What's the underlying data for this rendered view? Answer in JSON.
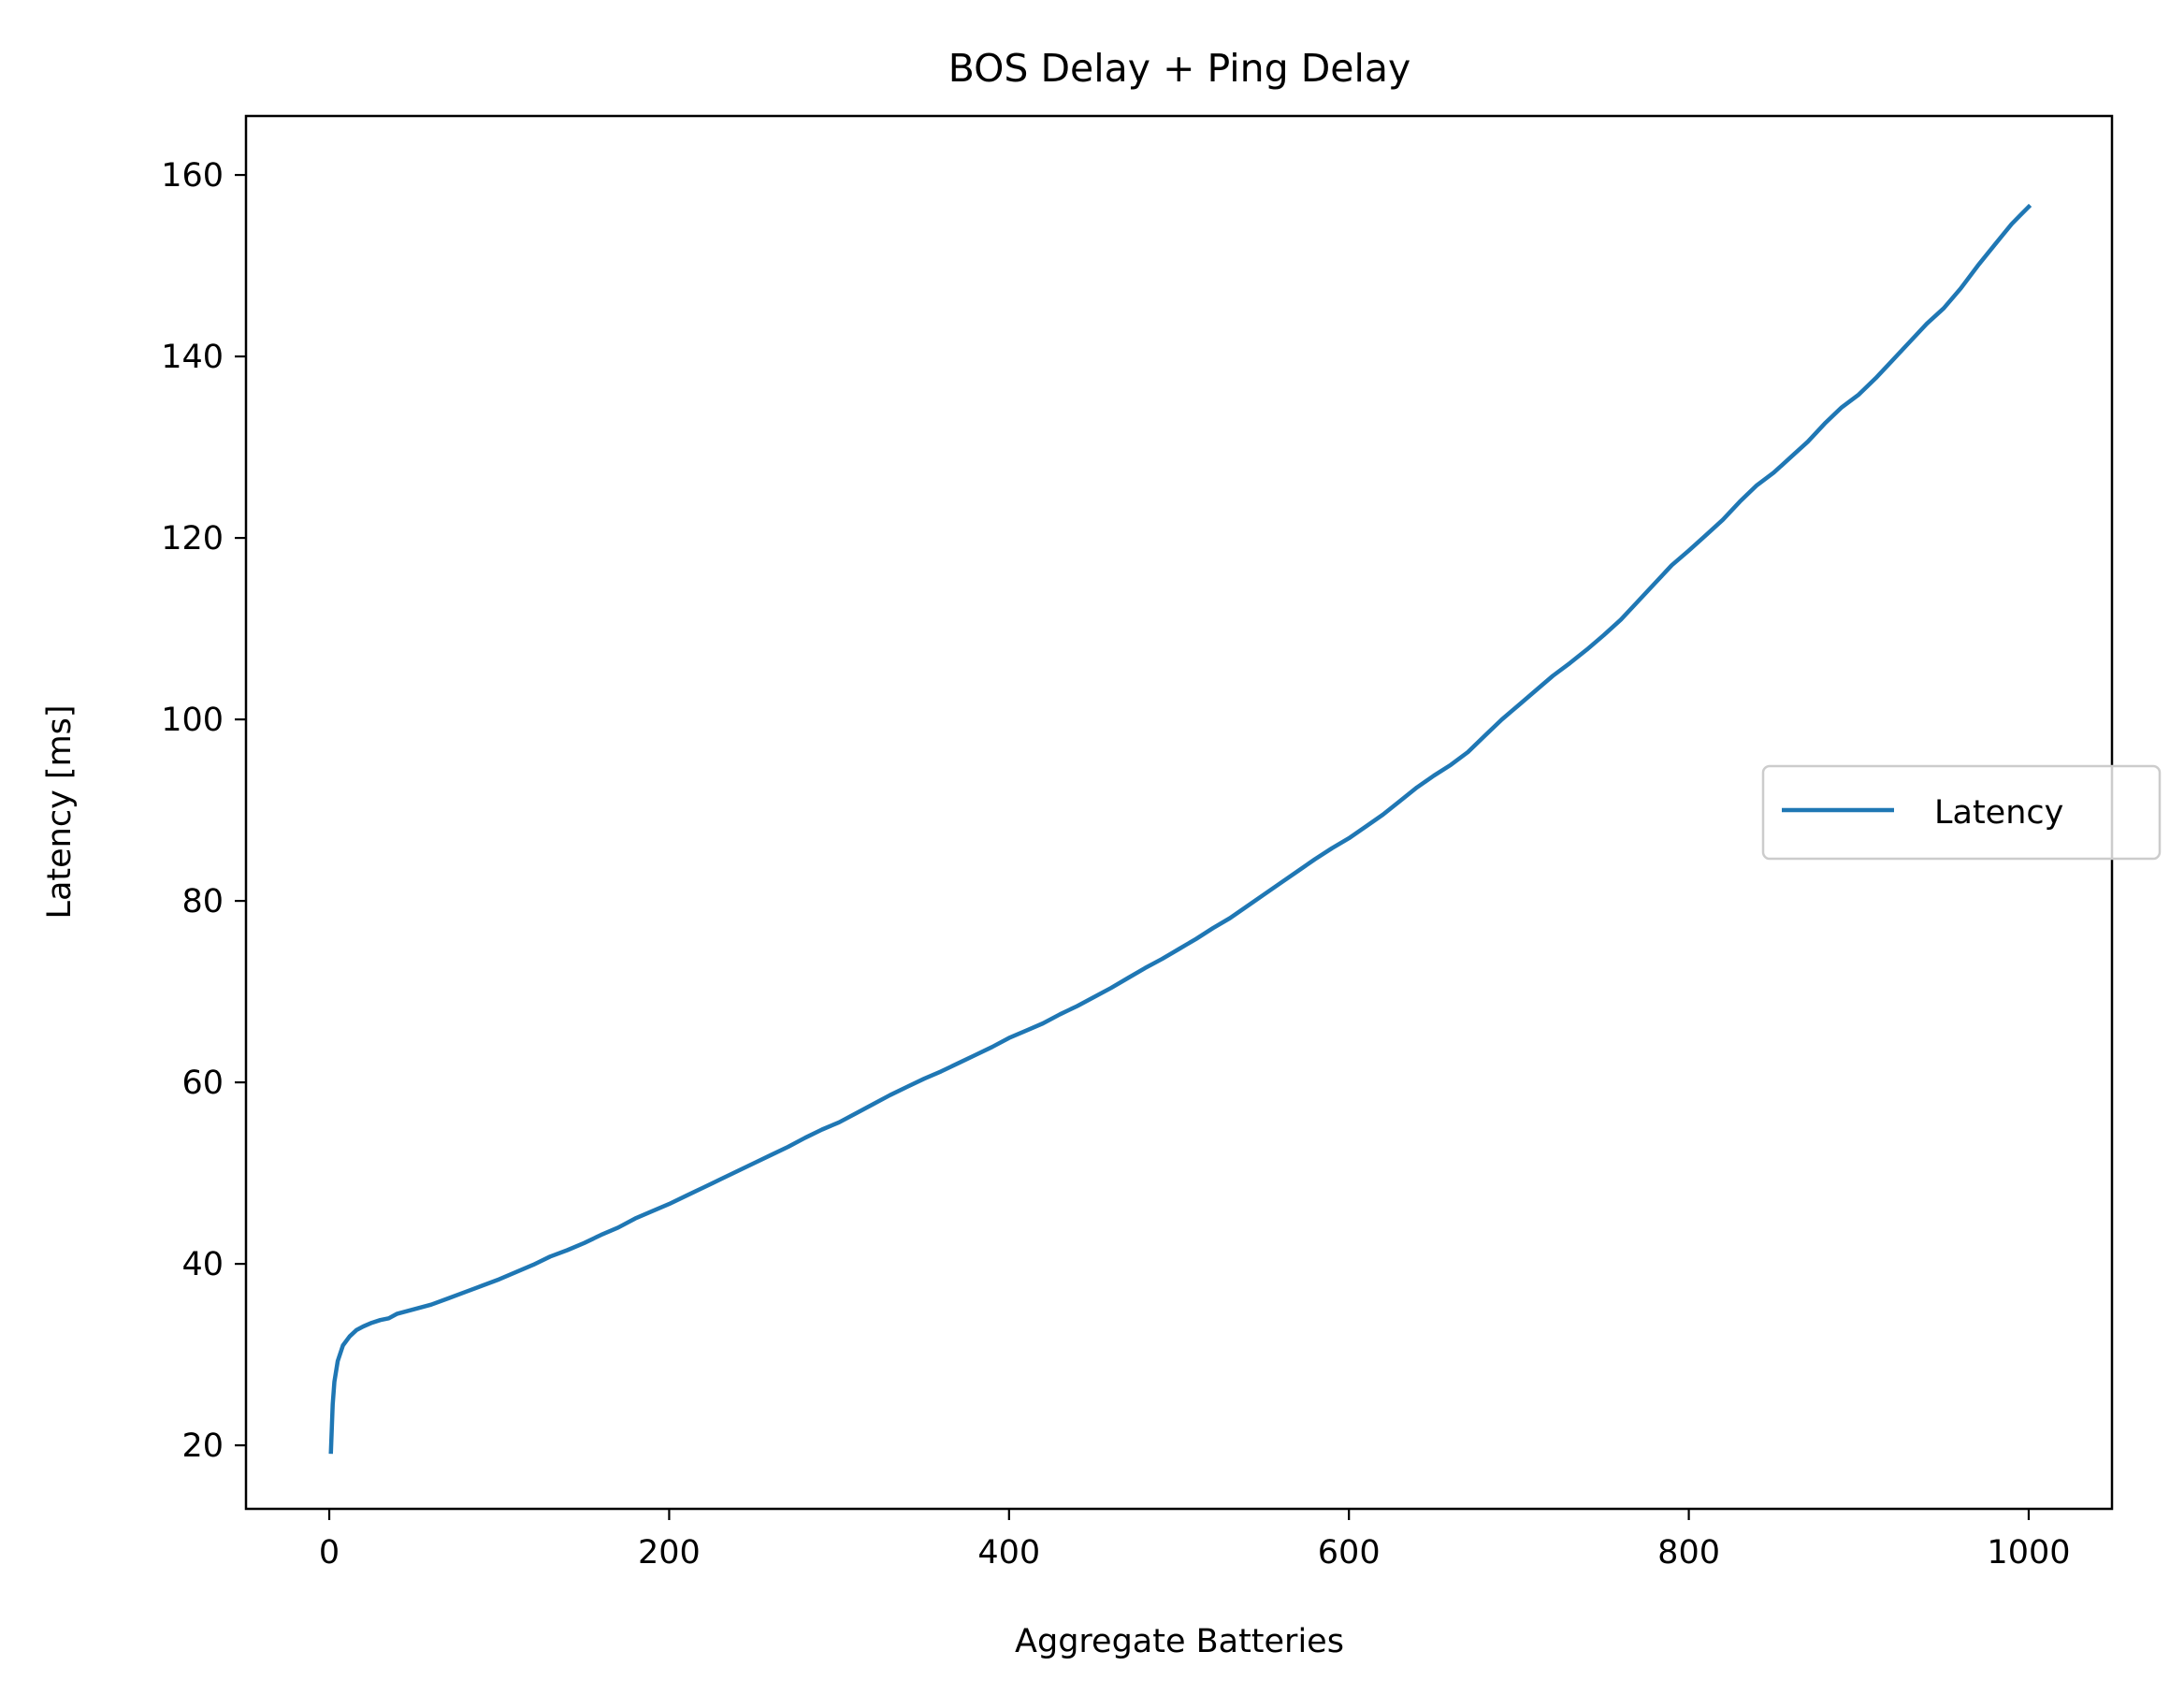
{
  "chart_data": {
    "type": "line",
    "title": "BOS Delay + Ping Delay",
    "xlabel": "Aggregate Batteries",
    "ylabel": "Latency [ms]",
    "xlim": [
      -49,
      1049
    ],
    "ylim": [
      13,
      166.5
    ],
    "xticks": [
      0,
      200,
      400,
      600,
      800,
      1000
    ],
    "yticks": [
      20,
      40,
      60,
      80,
      100,
      120,
      140,
      160
    ],
    "grid": false,
    "legend": "right (outside)",
    "series": [
      {
        "name": "Latency",
        "color": "#1f77b4",
        "points": [
          [
            1,
            19.3
          ],
          [
            2,
            24.5
          ],
          [
            3,
            27.0
          ],
          [
            5,
            29.3
          ],
          [
            8,
            31.0
          ],
          [
            12,
            32.0
          ],
          [
            16,
            32.7
          ],
          [
            20,
            33.1
          ],
          [
            25,
            33.5
          ],
          [
            30,
            33.8
          ],
          [
            35,
            34.0
          ],
          [
            40,
            34.5
          ],
          [
            50,
            35.0
          ],
          [
            60,
            35.5
          ],
          [
            70,
            36.2
          ],
          [
            80,
            36.9
          ],
          [
            90,
            37.6
          ],
          [
            100,
            38.3
          ],
          [
            110,
            39.1
          ],
          [
            120,
            39.9
          ],
          [
            130,
            40.8
          ],
          [
            140,
            41.5
          ],
          [
            150,
            42.3
          ],
          [
            160,
            43.2
          ],
          [
            170,
            44.0
          ],
          [
            180,
            45.0
          ],
          [
            190,
            45.8
          ],
          [
            200,
            46.6
          ],
          [
            210,
            47.5
          ],
          [
            220,
            48.4
          ],
          [
            230,
            49.3
          ],
          [
            240,
            50.2
          ],
          [
            250,
            51.1
          ],
          [
            260,
            52.0
          ],
          [
            270,
            52.9
          ],
          [
            280,
            53.9
          ],
          [
            290,
            54.8
          ],
          [
            300,
            55.6
          ],
          [
            310,
            56.6
          ],
          [
            320,
            57.6
          ],
          [
            330,
            58.6
          ],
          [
            340,
            59.5
          ],
          [
            350,
            60.4
          ],
          [
            360,
            61.2
          ],
          [
            370,
            62.1
          ],
          [
            380,
            63.0
          ],
          [
            390,
            63.9
          ],
          [
            400,
            64.9
          ],
          [
            410,
            65.7
          ],
          [
            420,
            66.5
          ],
          [
            430,
            67.5
          ],
          [
            440,
            68.4
          ],
          [
            450,
            69.4
          ],
          [
            460,
            70.4
          ],
          [
            470,
            71.5
          ],
          [
            480,
            72.6
          ],
          [
            490,
            73.6
          ],
          [
            500,
            74.7
          ],
          [
            510,
            75.8
          ],
          [
            520,
            77.0
          ],
          [
            530,
            78.1
          ],
          [
            540,
            79.4
          ],
          [
            550,
            80.7
          ],
          [
            560,
            82.0
          ],
          [
            570,
            83.3
          ],
          [
            580,
            84.6
          ],
          [
            590,
            85.8
          ],
          [
            600,
            86.9
          ],
          [
            610,
            88.2
          ],
          [
            620,
            89.5
          ],
          [
            630,
            91.0
          ],
          [
            640,
            92.5
          ],
          [
            650,
            93.8
          ],
          [
            660,
            95.0
          ],
          [
            670,
            96.4
          ],
          [
            680,
            98.2
          ],
          [
            690,
            100.0
          ],
          [
            700,
            101.6
          ],
          [
            710,
            103.2
          ],
          [
            720,
            104.8
          ],
          [
            730,
            106.2
          ],
          [
            740,
            107.7
          ],
          [
            750,
            109.3
          ],
          [
            760,
            111.0
          ],
          [
            770,
            113.0
          ],
          [
            780,
            115.0
          ],
          [
            790,
            117.0
          ],
          [
            800,
            118.6
          ],
          [
            810,
            120.3
          ],
          [
            820,
            122.0
          ],
          [
            830,
            124.0
          ],
          [
            840,
            125.8
          ],
          [
            850,
            127.2
          ],
          [
            860,
            128.9
          ],
          [
            870,
            130.6
          ],
          [
            880,
            132.6
          ],
          [
            890,
            134.4
          ],
          [
            900,
            135.8
          ],
          [
            910,
            137.6
          ],
          [
            920,
            139.6
          ],
          [
            930,
            141.6
          ],
          [
            940,
            143.6
          ],
          [
            950,
            145.3
          ],
          [
            960,
            147.5
          ],
          [
            970,
            150.0
          ],
          [
            980,
            152.3
          ],
          [
            990,
            154.6
          ],
          [
            1000,
            156.5
          ]
        ]
      }
    ]
  }
}
